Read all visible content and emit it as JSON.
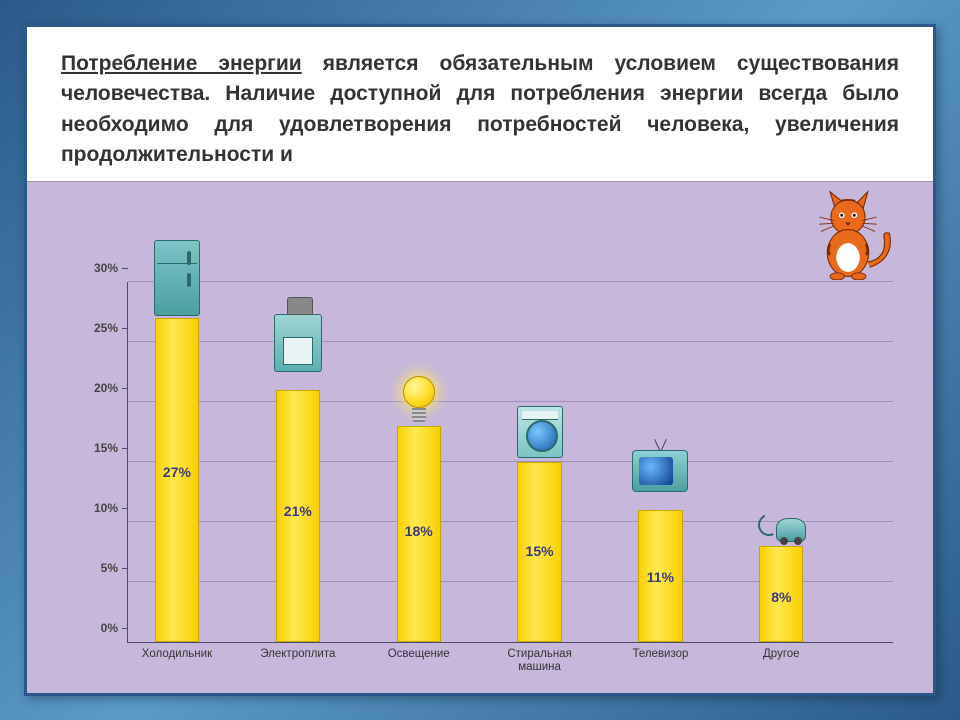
{
  "paragraph": {
    "lead_underlined": "Потребление энергии",
    "rest": " является обязательным условием существования человечества. Наличие доступной для потребления энергии всегда было необходимо для удовлетворения потребностей человека, увеличения продолжительности и"
  },
  "chart": {
    "type": "bar",
    "background_color": "#c7b8db",
    "bar_fill": "#f8d000",
    "bar_border": "#c8a800",
    "grid_color": "#a090b8",
    "axis_color": "#4a4a6a",
    "ylim": [
      0,
      30
    ],
    "ytick_step": 5,
    "ytick_labels": [
      "0%",
      "5%",
      "10%",
      "15%",
      "20%",
      "25%",
      "30%"
    ],
    "bar_width_pct": 5.8,
    "bar_gap_pct": 15.8,
    "first_bar_left_pct": 3.5,
    "value_label_color": "#3a3a7a",
    "value_label_fontsize": 14,
    "xlabel_fontsize": 11.5,
    "data": [
      {
        "category": "Холодильник",
        "value": 27,
        "value_label": "27%",
        "icon": "fridge",
        "icon_bottom_offset": 2
      },
      {
        "category": "Электроплита",
        "value": 21,
        "value_label": "21%",
        "icon": "stove",
        "icon_bottom_offset": 18
      },
      {
        "category": "Освещение",
        "value": 18,
        "value_label": "18%",
        "icon": "bulb",
        "icon_bottom_offset": 4
      },
      {
        "category": "Стиральная\nмашина",
        "value": 15,
        "value_label": "15%",
        "icon": "washer",
        "icon_bottom_offset": 4
      },
      {
        "category": "Телевизор",
        "value": 11,
        "value_label": "11%",
        "icon": "tv",
        "icon_bottom_offset": 12
      },
      {
        "category": "Другое",
        "value": 8,
        "value_label": "8%",
        "icon": "vacuum",
        "icon_bottom_offset": 4
      }
    ]
  },
  "decorations": {
    "cat_colors": {
      "body": "#e86a1a",
      "stripe": "#7a2a00",
      "belly": "#fff"
    }
  }
}
